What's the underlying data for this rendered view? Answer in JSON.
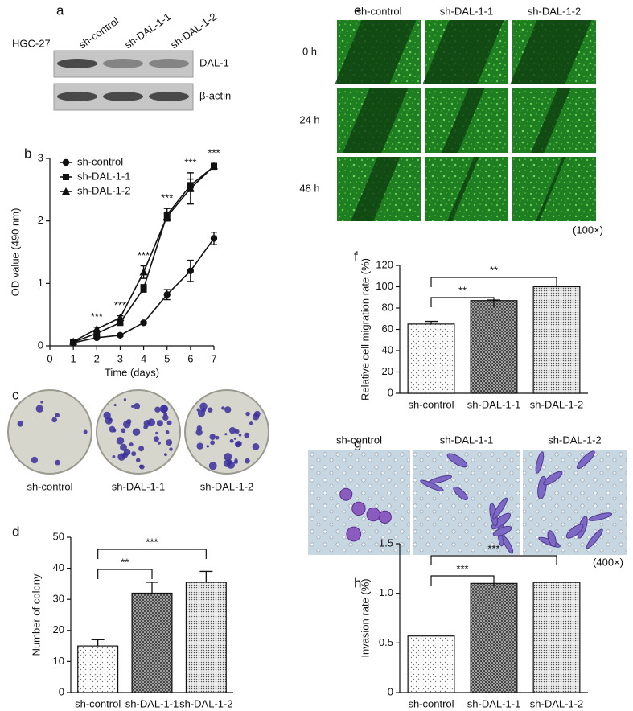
{
  "panel_letters": [
    "a",
    "b",
    "c",
    "d",
    "e",
    "f",
    "g",
    "h"
  ],
  "blot": {
    "cell_line": "HGC-27",
    "lanes": [
      "sh-control",
      "sh-DAL-1-1",
      "sh-DAL-1-2"
    ],
    "bands": [
      "DAL-1",
      "β-actin"
    ]
  },
  "colony_images": {
    "labels": [
      "sh-control",
      "sh-DAL-1-1",
      "sh-DAL-1-2"
    ]
  },
  "wound_images": {
    "columns": [
      "sh-control",
      "sh-DAL-1-1",
      "sh-DAL-1-2"
    ],
    "rows": [
      "0 h",
      "24 h",
      "48 h"
    ],
    "magnification": "(100×)"
  },
  "invasion_images": {
    "columns": [
      "sh-control",
      "sh-DAL-1-1",
      "sh-DAL-1-2"
    ],
    "magnification": "(400×)"
  },
  "chart_data": [
    {
      "type": "line",
      "x_label": "Time (days)",
      "y_label": "OD value (490 nm)",
      "x": [
        1,
        2,
        3,
        4,
        5,
        6,
        7
      ],
      "xlim": [
        0,
        7
      ],
      "xticks": [
        0,
        1,
        2,
        3,
        4,
        5,
        6,
        7
      ],
      "ylim": [
        0,
        3
      ],
      "yticks": [
        0,
        1,
        2,
        3
      ],
      "legend": "upper left",
      "series": [
        {
          "name": "sh-control",
          "color": "#111111",
          "marker": "circle",
          "values": [
            0.05,
            0.13,
            0.17,
            0.37,
            0.82,
            1.2,
            1.72
          ],
          "errors": [
            0.02,
            0.02,
            0.02,
            0.02,
            0.08,
            0.17,
            0.1
          ]
        },
        {
          "name": "sh-DAL-1-1",
          "color": "#111111",
          "marker": "square",
          "values": [
            0.06,
            0.2,
            0.37,
            0.92,
            2.1,
            2.57,
            2.87
          ],
          "errors": [
            0.02,
            0.03,
            0.03,
            0.06,
            0.1,
            0.1,
            0.04
          ]
        },
        {
          "name": "sh-DAL-1-2",
          "color": "#111111",
          "marker": "triangle",
          "values": [
            0.07,
            0.27,
            0.45,
            1.18,
            2.07,
            2.52,
            2.88
          ],
          "errors": [
            0.02,
            0.03,
            0.03,
            0.1,
            0.07,
            0.25,
            0.04
          ]
        }
      ],
      "annotations": [
        {
          "x": 2,
          "text": "***"
        },
        {
          "x": 3,
          "text": "***"
        },
        {
          "x": 4,
          "text": "***"
        },
        {
          "x": 5,
          "text": "***"
        },
        {
          "x": 6,
          "text": "***"
        },
        {
          "x": 7,
          "text": "***"
        }
      ]
    },
    {
      "type": "bar",
      "y_label": "Number of colony",
      "categories": [
        "sh-control",
        "sh-DAL-1-1",
        "sh-DAL-1-2"
      ],
      "values": [
        15,
        32,
        35.5
      ],
      "errors": [
        2,
        3.5,
        3.5
      ],
      "ylim": [
        0,
        50
      ],
      "yticks": [
        0,
        10,
        20,
        30,
        40,
        50
      ],
      "significance": [
        {
          "from": 0,
          "to": 1,
          "text": "**"
        },
        {
          "from": 0,
          "to": 2,
          "text": "***"
        }
      ]
    },
    {
      "type": "bar",
      "y_label": "Relative cell migration rate (%)",
      "categories": [
        "sh-control",
        "sh-DAL-1-1",
        "sh-DAL-1-2"
      ],
      "values": [
        65,
        87,
        100
      ],
      "errors": [
        2.5,
        0.5,
        0.5
      ],
      "ylim": [
        0,
        120
      ],
      "yticks": [
        0,
        20,
        40,
        60,
        80,
        100,
        120
      ],
      "significance": [
        {
          "from": 0,
          "to": 1,
          "text": "**"
        },
        {
          "from": 0,
          "to": 2,
          "text": "**"
        }
      ]
    },
    {
      "type": "bar",
      "y_label": "Invasion rate (%)",
      "categories": [
        "sh-control",
        "sh-DAL-1-1",
        "sh-DAL-1-2"
      ],
      "values": [
        0.57,
        1.1,
        1.11
      ],
      "ylim": [
        0,
        1.5
      ],
      "yticks": [
        0,
        0.5,
        {
          "value": 1,
          "label": "1.0"
        },
        1.5
      ],
      "significance": [
        {
          "from": 0,
          "to": 1,
          "text": "***"
        },
        {
          "from": 0,
          "to": 2,
          "text": "***"
        }
      ]
    }
  ]
}
